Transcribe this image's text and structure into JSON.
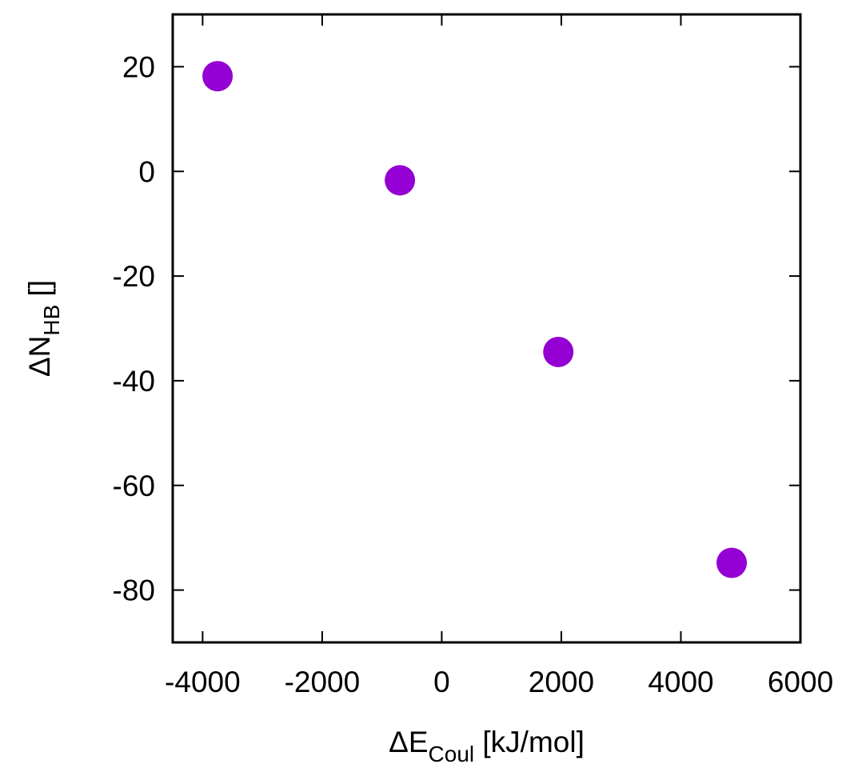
{
  "chart_data": {
    "type": "scatter",
    "title": "",
    "xlabel": {
      "prefix": "ΔE",
      "subscript": "Coul",
      "suffix": " [kJ/mol]"
    },
    "ylabel": {
      "prefix": "ΔN",
      "subscript": "HB",
      "suffix": " []"
    },
    "xlim": [
      -4500,
      6000
    ],
    "ylim": [
      -90,
      30
    ],
    "xticks": [
      -4000,
      -2000,
      0,
      2000,
      4000,
      6000
    ],
    "yticks": [
      -80,
      -60,
      -40,
      -20,
      0,
      20
    ],
    "grid": false,
    "legend": "none",
    "series": [
      {
        "color": "#9400d3",
        "marker": "circle",
        "points": [
          {
            "x": -3750,
            "y": 18.2
          },
          {
            "x": -700,
            "y": -1.7
          },
          {
            "x": 1950,
            "y": -34.5
          },
          {
            "x": 4850,
            "y": -74.8
          }
        ]
      }
    ]
  }
}
